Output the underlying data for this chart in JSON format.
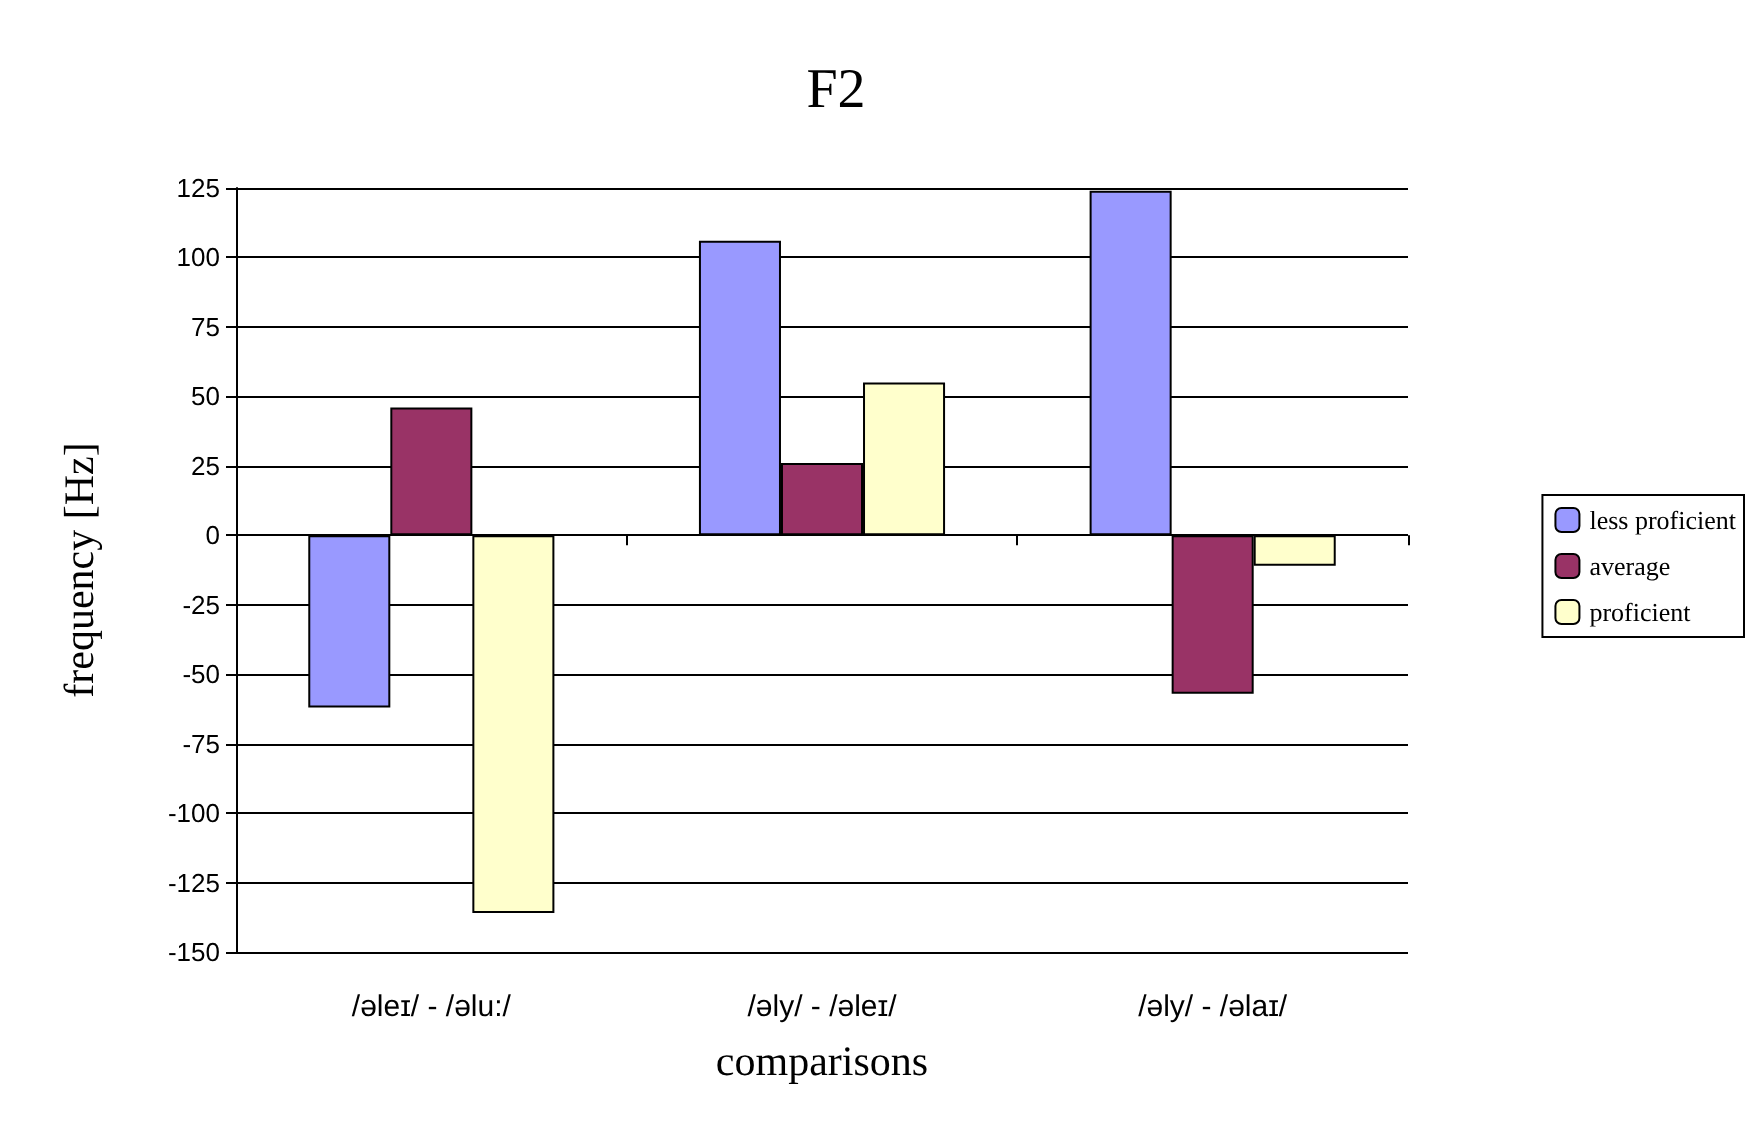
{
  "chart_data": {
    "type": "bar",
    "title": "F2",
    "xlabel": "comparisons",
    "ylabel": "frequency [Hz]",
    "categories": [
      "/əleɪ/ - /əlu:/",
      "/əly/ - /əleɪ/",
      "/əly/ - /əlaɪ/"
    ],
    "series": [
      {
        "name": "less proficient",
        "color": "#9999ff",
        "values": [
          -62,
          106,
          124
        ]
      },
      {
        "name": "average",
        "color": "#993366",
        "values": [
          46,
          26,
          -57
        ]
      },
      {
        "name": "proficient",
        "color": "#ffffcc",
        "values": [
          -136,
          55,
          -11
        ]
      }
    ],
    "ylim": [
      -150,
      125
    ],
    "yticks": [
      -150,
      -125,
      -100,
      -75,
      -50,
      -25,
      0,
      25,
      50,
      75,
      100,
      125
    ],
    "grid": "y",
    "legend": "right"
  }
}
